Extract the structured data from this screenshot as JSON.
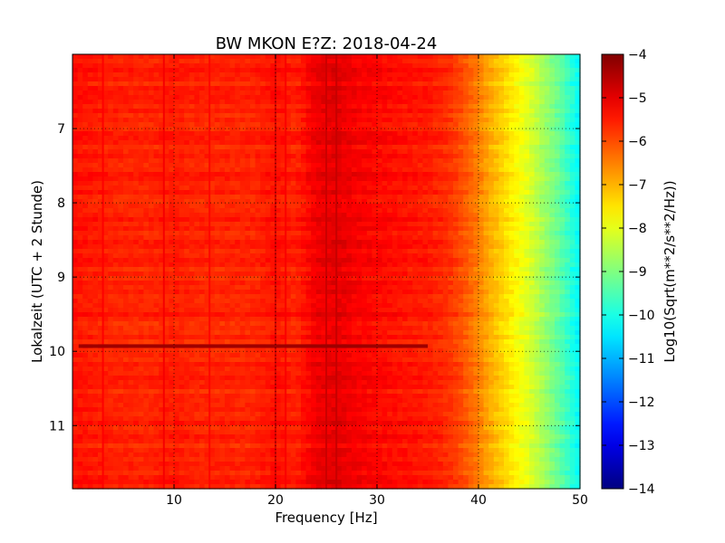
{
  "chart_data": {
    "type": "heatmap",
    "title": "BW MKON E?Z: 2018-04-24",
    "xlabel": "Frequency [Hz]",
    "ylabel": "Lokalzeit (UTC + 2 Stunde)",
    "xlim": [
      0,
      50
    ],
    "ylim": [
      6.0,
      11.85
    ],
    "y_inverted": true,
    "x_ticks": [
      10,
      20,
      30,
      40,
      50
    ],
    "x_tick_labels": [
      "10",
      "20",
      "30",
      "40",
      "50"
    ],
    "y_ticks": [
      7,
      8,
      9,
      10,
      11
    ],
    "y_tick_labels": [
      "7",
      "8",
      "9",
      "10",
      "11"
    ],
    "grid": "dotted",
    "colormap": "jet",
    "colorbar": {
      "label": "Log10(Sqrt(m**2/s**2/Hz))",
      "range": [
        -14,
        -4
      ],
      "ticks": [
        -4,
        -5,
        -6,
        -7,
        -8,
        -9,
        -10,
        -11,
        -12,
        -13,
        -14
      ],
      "tick_labels": [
        "−4",
        "−5",
        "−6",
        "−7",
        "−8",
        "−9",
        "−10",
        "−11",
        "−12",
        "−13",
        "−14"
      ]
    },
    "spectral_profile": {
      "frequency_hz": [
        0,
        2,
        5,
        8,
        10,
        12,
        15,
        18,
        20,
        22,
        24,
        26,
        28,
        30,
        32,
        35,
        37,
        38,
        39,
        40,
        41,
        42,
        43,
        44,
        45,
        46,
        47,
        48,
        49,
        50
      ],
      "level": [
        -5.4,
        -5.5,
        -5.6,
        -5.6,
        -5.5,
        -5.6,
        -5.6,
        -5.6,
        -5.4,
        -5.6,
        -5.1,
        -5.0,
        -5.2,
        -5.3,
        -5.4,
        -5.5,
        -5.7,
        -5.9,
        -6.2,
        -6.5,
        -6.9,
        -7.2,
        -7.5,
        -7.8,
        -8.1,
        -8.5,
        -8.9,
        -9.3,
        -9.8,
        -10.3
      ]
    },
    "vertical_lines": [
      {
        "frequency_hz": 3,
        "delta": 0.3
      },
      {
        "frequency_hz": 9,
        "delta": 0.4
      },
      {
        "frequency_hz": 13.5,
        "delta": 0.3
      },
      {
        "frequency_hz": 20,
        "delta": 0.5
      },
      {
        "frequency_hz": 21,
        "delta": 0.3
      },
      {
        "frequency_hz": 25,
        "delta": 0.3
      },
      {
        "frequency_hz": 26,
        "delta": 0.3
      }
    ],
    "horizontal_event": {
      "time": 9.93,
      "frequency_range_hz": [
        0.6,
        35
      ],
      "level": -4.3
    }
  }
}
